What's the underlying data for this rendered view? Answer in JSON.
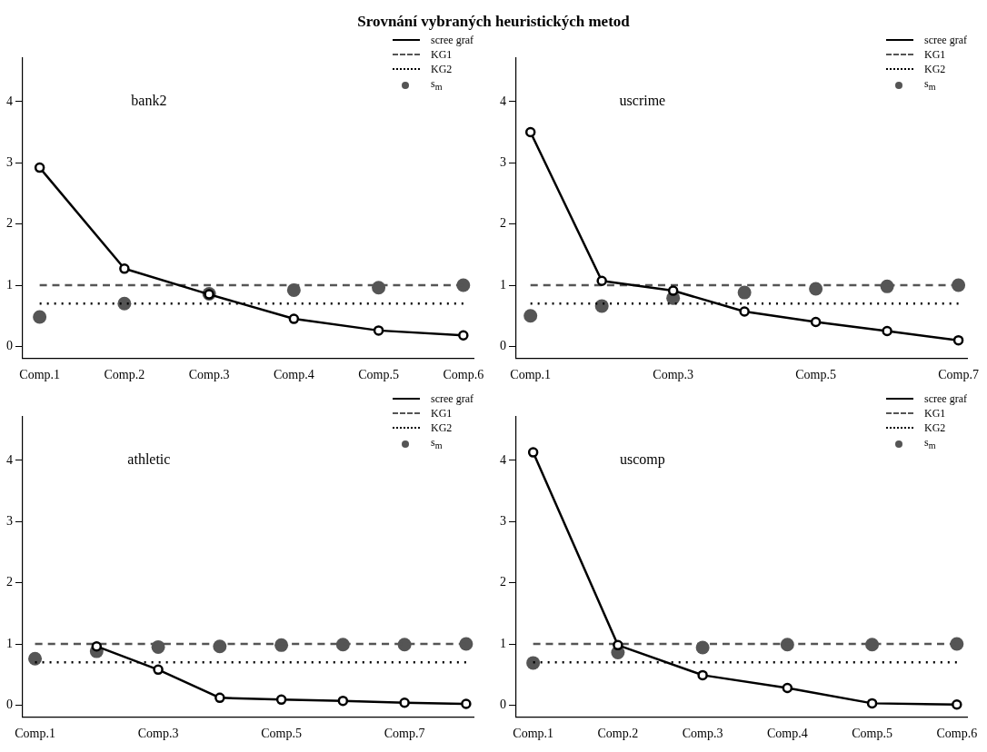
{
  "chart_data": [
    {
      "type": "line",
      "title": "bank2",
      "annotations": [
        "Srovnání vybraných heuristických metod"
      ],
      "categories": [
        "Comp.1",
        "Comp.2",
        "Comp.3",
        "Comp.4",
        "Comp.5",
        "Comp.6"
      ],
      "ylim": [
        -0.19,
        4.71
      ],
      "yticks": [
        0,
        1,
        2,
        3,
        4
      ],
      "legend": "top right",
      "series": [
        {
          "name": "scree graf",
          "type": "line",
          "color": "#000000",
          "line_style": "solid",
          "marker": "circle",
          "values": [
            2.92,
            1.27,
            0.85,
            0.45,
            0.26,
            0.18
          ]
        },
        {
          "name": "KG1",
          "type": "line",
          "color": "#555555",
          "line_style": "dashed",
          "marker": "none",
          "values": [
            1,
            1,
            1,
            1,
            1,
            1
          ]
        },
        {
          "name": "KG2",
          "type": "line",
          "color": "#000000",
          "line_style": "dotted",
          "marker": "none",
          "values": [
            0.7,
            0.7,
            0.7,
            0.7,
            0.7,
            0.7
          ]
        },
        {
          "name": "s$_{m}$",
          "type": "scatter",
          "color": "#555555",
          "marker": "circle",
          "values": [
            0.48,
            0.7,
            0.86,
            0.92,
            0.96,
            1.0
          ]
        }
      ]
    },
    {
      "type": "line",
      "title": "uscrime",
      "categories": [
        "Comp.1",
        null,
        "Comp.3",
        null,
        "Comp.5",
        null,
        "Comp.7"
      ],
      "ylim": [
        -0.19,
        4.71
      ],
      "yticks": [
        0,
        1,
        2,
        3,
        4
      ],
      "legend": "top right",
      "series": [
        {
          "name": "scree graf",
          "type": "line",
          "color": "#000000",
          "line_style": "solid",
          "marker": "circle",
          "values": [
            3.5,
            1.07,
            0.91,
            0.57,
            0.4,
            0.25,
            0.1
          ]
        },
        {
          "name": "KG1",
          "type": "line",
          "color": "#555555",
          "line_style": "dashed",
          "marker": "none",
          "values": [
            1,
            1,
            1,
            1,
            1,
            1,
            1
          ]
        },
        {
          "name": "KG2",
          "type": "line",
          "color": "#000000",
          "line_style": "dotted",
          "marker": "none",
          "values": [
            0.7,
            0.7,
            0.7,
            0.7,
            0.7,
            0.7,
            0.7
          ]
        },
        {
          "name": "s$_{m}$",
          "type": "scatter",
          "color": "#555555",
          "marker": "circle",
          "values": [
            0.5,
            0.66,
            0.79,
            0.88,
            0.94,
            0.98,
            1.0
          ]
        }
      ]
    },
    {
      "type": "line",
      "title": "athletic",
      "categories": [
        "Comp.1",
        null,
        "Comp.3",
        null,
        "Comp.5",
        null,
        "Comp.7",
        null
      ],
      "ylim": [
        -0.19,
        4.71
      ],
      "yticks": [
        0,
        1,
        2,
        3,
        4
      ],
      "legend": "top right",
      "series": [
        {
          "name": "scree graf",
          "type": "line",
          "color": "#000000",
          "line_style": "solid",
          "marker": "circle",
          "values": [
            null,
            0.96,
            0.58,
            0.12,
            0.09,
            0.07,
            0.04,
            0.02
          ]
        },
        {
          "name": "KG1",
          "type": "line",
          "color": "#555555",
          "line_style": "dashed",
          "marker": "none",
          "values": [
            1,
            1,
            1,
            1,
            1,
            1,
            1,
            1
          ]
        },
        {
          "name": "KG2",
          "type": "line",
          "color": "#000000",
          "line_style": "dotted",
          "marker": "none",
          "values": [
            0.7,
            0.7,
            0.7,
            0.7,
            0.7,
            0.7,
            0.7,
            0.7
          ]
        },
        {
          "name": "s$_{m}$",
          "type": "scatter",
          "color": "#555555",
          "marker": "circle",
          "values": [
            0.76,
            0.88,
            0.95,
            0.96,
            0.98,
            0.99,
            0.99,
            1.0
          ]
        }
      ]
    },
    {
      "type": "line",
      "title": "uscomp",
      "categories": [
        "Comp.1",
        "Comp.2",
        "Comp.3",
        "Comp.4",
        "Comp.5",
        "Comp.6"
      ],
      "ylim": [
        -0.19,
        4.71
      ],
      "yticks": [
        0,
        1,
        2,
        3,
        4
      ],
      "legend": "top right",
      "series": [
        {
          "name": "scree graf",
          "type": "line",
          "color": "#000000",
          "line_style": "solid",
          "marker": "circle",
          "values": [
            4.13,
            0.98,
            0.49,
            0.28,
            0.03,
            0.01
          ]
        },
        {
          "name": "KG1",
          "type": "line",
          "color": "#555555",
          "line_style": "dashed",
          "marker": "none",
          "values": [
            1,
            1,
            1,
            1,
            1,
            1
          ]
        },
        {
          "name": "KG2",
          "type": "line",
          "color": "#000000",
          "line_style": "dotted",
          "marker": "none",
          "values": [
            0.7,
            0.7,
            0.7,
            0.7,
            0.7,
            0.7
          ]
        },
        {
          "name": "s$_{m}$",
          "type": "scatter",
          "color": "#555555",
          "marker": "circle",
          "values": [
            0.69,
            0.86,
            0.94,
            0.99,
            0.99,
            1.0
          ]
        }
      ]
    }
  ]
}
